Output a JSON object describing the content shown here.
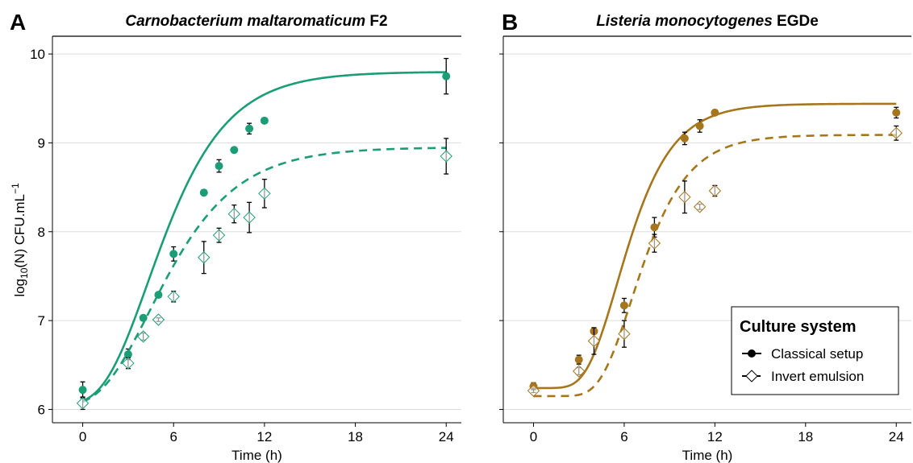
{
  "figure": {
    "ylabel_base": "log",
    "ylabel_sub": "10",
    "ylabel_mid": "(N) CFU.mL",
    "ylabel_sup": "−1",
    "legend": {
      "title": "Culture system",
      "items": [
        "Classical setup",
        "Invert emulsion"
      ]
    }
  },
  "chart_data": [
    {
      "type": "scatter",
      "panel_letter": "A",
      "title_italic": "Carnobacterium maltaromaticum",
      "title_plain": "F2",
      "xlabel": "Time (h)",
      "ylabel": "log10(N) CFU.mL−1",
      "xlim": [
        -2,
        25
      ],
      "ylim": [
        5.85,
        10.2
      ],
      "xticks": [
        0,
        6,
        12,
        18,
        24
      ],
      "yticks": [
        6,
        7,
        8,
        9,
        10
      ],
      "grid": "horizontal",
      "color": "#1b9e77",
      "series": [
        {
          "name": "Classical setup",
          "marker": "circle",
          "line": "solid",
          "points": [
            {
              "x": 0,
              "y": 6.22,
              "err": 0.09
            },
            {
              "x": 3,
              "y": 6.62,
              "err": 0.06
            },
            {
              "x": 4,
              "y": 7.03,
              "err": 0.02
            },
            {
              "x": 5,
              "y": 7.29,
              "err": 0.02
            },
            {
              "x": 6,
              "y": 7.75,
              "err": 0.08
            },
            {
              "x": 8,
              "y": 8.44,
              "err": 0.03
            },
            {
              "x": 9,
              "y": 8.74,
              "err": 0.07
            },
            {
              "x": 10,
              "y": 8.92,
              "err": 0.03
            },
            {
              "x": 11,
              "y": 9.16,
              "err": 0.06
            },
            {
              "x": 12,
              "y": 9.25,
              "err": 0.03
            },
            {
              "x": 24,
              "y": 9.75,
              "err": 0.2
            }
          ],
          "fit": {
            "y0": 6.05,
            "ymax": 9.8,
            "mu": 0.475,
            "lag": 1.4
          }
        },
        {
          "name": "Invert emulsion",
          "marker": "diamond",
          "line": "dashed",
          "points": [
            {
              "x": 0,
              "y": 6.07,
              "err": 0.07
            },
            {
              "x": 3,
              "y": 6.52,
              "err": 0.06
            },
            {
              "x": 4,
              "y": 6.82,
              "err": 0.04
            },
            {
              "x": 5,
              "y": 7.01,
              "err": 0.02
            },
            {
              "x": 6,
              "y": 7.27,
              "err": 0.06
            },
            {
              "x": 8,
              "y": 7.71,
              "err": 0.18
            },
            {
              "x": 9,
              "y": 7.96,
              "err": 0.08
            },
            {
              "x": 10,
              "y": 8.2,
              "err": 0.1
            },
            {
              "x": 11,
              "y": 8.16,
              "err": 0.17
            },
            {
              "x": 12,
              "y": 8.43,
              "err": 0.16
            },
            {
              "x": 24,
              "y": 8.85,
              "err": 0.2
            }
          ],
          "fit": {
            "y0": 6.03,
            "ymax": 8.95,
            "mu": 0.335,
            "lag": 1.2
          }
        }
      ]
    },
    {
      "type": "scatter",
      "panel_letter": "B",
      "title_italic": "Listeria monocytogenes",
      "title_plain": "EGDe",
      "xlabel": "Time (h)",
      "ylabel": "",
      "xlim": [
        -2,
        25
      ],
      "ylim": [
        5.85,
        10.2
      ],
      "xticks": [
        0,
        6,
        12,
        18,
        24
      ],
      "yticks": [
        6,
        7,
        8,
        9,
        10
      ],
      "grid": "horizontal",
      "color": "#a6761d",
      "series": [
        {
          "name": "Classical setup",
          "marker": "circle",
          "line": "solid",
          "points": [
            {
              "x": 0,
              "y": 6.26,
              "err": 0.04
            },
            {
              "x": 3,
              "y": 6.56,
              "err": 0.05
            },
            {
              "x": 4,
              "y": 6.88,
              "err": 0.03
            },
            {
              "x": 6,
              "y": 7.17,
              "err": 0.08
            },
            {
              "x": 8,
              "y": 8.05,
              "err": 0.11
            },
            {
              "x": 10,
              "y": 9.05,
              "err": 0.07
            },
            {
              "x": 11,
              "y": 9.19,
              "err": 0.07
            },
            {
              "x": 12,
              "y": 9.34,
              "err": 0.03
            },
            {
              "x": 24,
              "y": 9.34,
              "err": 0.06
            }
          ],
          "fit": {
            "y0": 6.24,
            "ymax": 9.44,
            "mu": 0.58,
            "lag": 3.5
          }
        },
        {
          "name": "Invert emulsion",
          "marker": "diamond",
          "line": "dashed",
          "points": [
            {
              "x": 0,
              "y": 6.21,
              "err": 0.02
            },
            {
              "x": 3,
              "y": 6.43,
              "err": 0.04
            },
            {
              "x": 4,
              "y": 6.77,
              "err": 0.15
            },
            {
              "x": 6,
              "y": 6.85,
              "err": 0.15
            },
            {
              "x": 8,
              "y": 7.87,
              "err": 0.1
            },
            {
              "x": 10,
              "y": 8.39,
              "err": 0.18
            },
            {
              "x": 11,
              "y": 8.28,
              "err": 0.03
            },
            {
              "x": 12,
              "y": 8.46,
              "err": 0.06
            },
            {
              "x": 24,
              "y": 9.11,
              "err": 0.08
            }
          ],
          "fit": {
            "y0": 6.15,
            "ymax": 9.09,
            "mu": 0.52,
            "lag": 4.4
          }
        }
      ]
    }
  ]
}
